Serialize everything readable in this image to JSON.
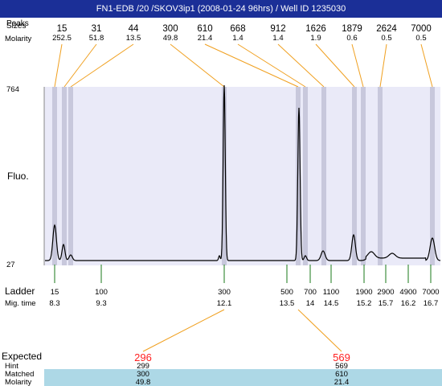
{
  "window": {
    "title": "FN1-EDB /20 /SKOV3ip1 (2008-01-24 96hrs) / Well ID 1235030"
  },
  "labels": {
    "sizes": "Sizes",
    "peaks_overlay": "Peaks",
    "molarity": "Molarity",
    "fluo": "Fluo.",
    "ladder": "Ladder",
    "mig_time": "Mig. time",
    "expected": "Expected",
    "hint": "Hint",
    "matched": "Matched",
    "bottom_molarity": "Molarity"
  },
  "colors": {
    "title_bg": "#1b2f97",
    "plot_bg": "#eaeaf8",
    "band": "#c8c8dc",
    "connector": "#f0a020",
    "ladder_tick": "#1a7a1a",
    "expected_text": "#ff2020",
    "matched_row_bg": "#add8e6"
  },
  "top_peaks": [
    {
      "size": "15",
      "molarity": "252.5"
    },
    {
      "size": "31",
      "molarity": "51.8"
    },
    {
      "size": "44",
      "molarity": "13.5"
    },
    {
      "size": "300",
      "molarity": "49.8"
    },
    {
      "size": "610",
      "molarity": "21.4"
    },
    {
      "size": "668",
      "molarity": "1.4"
    },
    {
      "size": "912",
      "molarity": "1.4"
    },
    {
      "size": "1626",
      "molarity": "1.9"
    },
    {
      "size": "1879",
      "molarity": "0.6"
    },
    {
      "size": "2624",
      "molarity": "0.5"
    },
    {
      "size": "7000",
      "molarity": "0.5"
    }
  ],
  "y_axis": {
    "max": "764",
    "min": "27"
  },
  "ladder": [
    {
      "size": "15",
      "time": "8.3"
    },
    {
      "size": "100",
      "time": "9.3"
    },
    {
      "size": "300",
      "time": "12.1"
    },
    {
      "size": "500",
      "time": "13.5"
    },
    {
      "size": "700",
      "time": "14"
    },
    {
      "size": "1100",
      "time": "14.5"
    },
    {
      "size": "1900",
      "time": "15.2"
    },
    {
      "size": "2900",
      "time": "15.7"
    },
    {
      "size": "4900",
      "time": "16.2"
    },
    {
      "size": "7000",
      "time": "16.7"
    }
  ],
  "expected": [
    {
      "expected": "296",
      "hint": "299",
      "matched": "300",
      "molarity": "49.8"
    },
    {
      "expected": "569",
      "hint": "569",
      "matched": "610",
      "molarity": "21.4"
    }
  ]
}
